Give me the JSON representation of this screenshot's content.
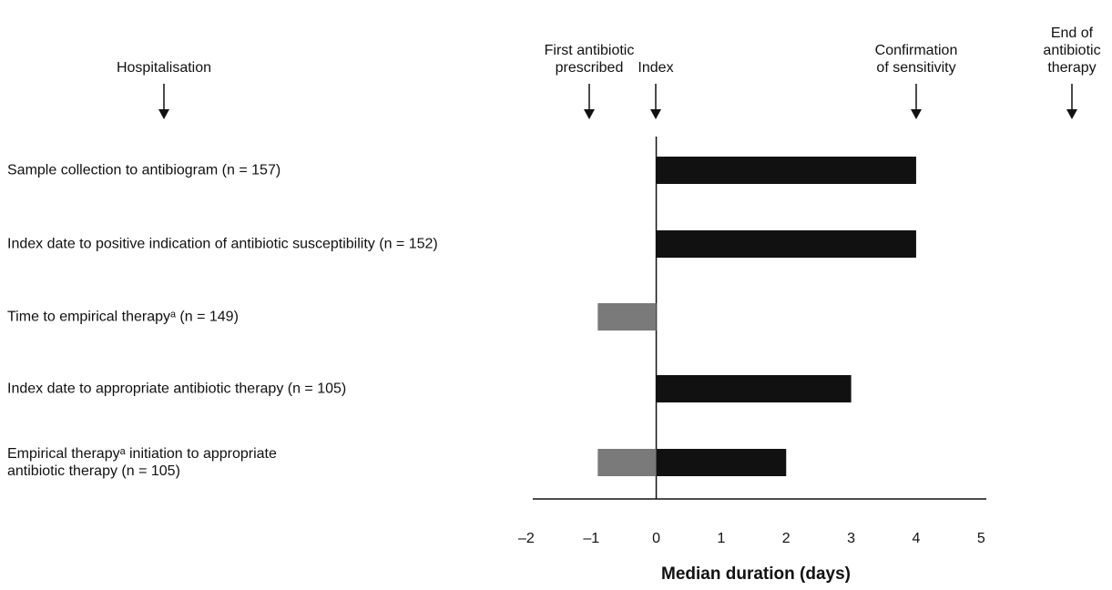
{
  "chart_data": {
    "type": "bar",
    "orientation": "horizontal",
    "x_label": "Median duration (days)",
    "annotations": [
      "Hospitalisation",
      "First antibiotic\nprescribed",
      "Index",
      "Confirmation\nof sensitivity",
      "End of\nantibiotic\ntherapy"
    ],
    "categories": [
      "Sample collection to antibiogram (n = 157)",
      "Index date to positive indication of antibiotic susceptibility (n = 152)",
      "Time to empirical therapyᵃ (n = 149)",
      "Index date to appropriate antibiotic therapy (n = 105)",
      "Empirical therapyᵃ initiation to appropriate\nantibiotic therapy (n = 105)"
    ],
    "series": [
      {
        "color": "#111111",
        "values": [
          4,
          4,
          null,
          3,
          2
        ]
      },
      {
        "color": "#7a7a7a",
        "values": [
          null,
          null,
          -0.9,
          null,
          -0.9
        ]
      }
    ],
    "xlim": [
      -1.9,
      5.08
    ],
    "xticks": [
      {
        "value": -2,
        "label": "–2"
      },
      {
        "value": -1,
        "label": "–1"
      },
      0,
      1,
      2,
      3,
      4,
      5
    ]
  }
}
